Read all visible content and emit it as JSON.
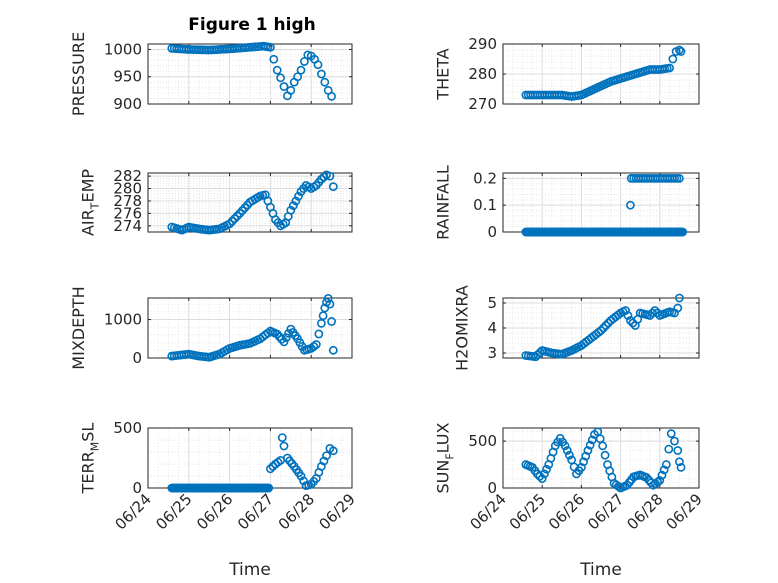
{
  "figure": {
    "title": "Figure 1 high"
  },
  "colors": {
    "marker": "#0072BD",
    "axis": "#262626",
    "grid_major": "#dcdcdc",
    "grid_minor": "#e6e6e6"
  },
  "chart_data": [
    {
      "id": "pressure",
      "type": "scatter",
      "title": "Figure 1 high",
      "xlabel": "",
      "ylabel_parts": [
        "PRESSURE"
      ],
      "xlim": [
        "06/24",
        "06/29"
      ],
      "ylim": [
        900,
        1010
      ],
      "yticks": [
        900,
        950,
        1000
      ],
      "xticks": [
        "06/24",
        "06/25",
        "06/26",
        "06/27",
        "06/28",
        "06/29"
      ],
      "grid": "on-minor",
      "show_xticklabels": false,
      "points": [
        [
          "06/24 14:00",
          1002
        ],
        [
          "06/25 00:00",
          1000
        ],
        [
          "06/25 12:00",
          999
        ],
        [
          "06/26 00:00",
          1001
        ],
        [
          "06/26 12:00",
          1004
        ],
        [
          "06/26 20:00",
          1006
        ],
        [
          "06/27 00:00",
          1004
        ],
        [
          "06/27 02:00",
          982
        ],
        [
          "06/27 04:00",
          962
        ],
        [
          "06/27 06:00",
          948
        ],
        [
          "06/27 08:00",
          932
        ],
        [
          "06/27 10:00",
          915
        ],
        [
          "06/27 12:00",
          925
        ],
        [
          "06/27 14:00",
          940
        ],
        [
          "06/27 16:00",
          950
        ],
        [
          "06/27 18:00",
          962
        ],
        [
          "06/27 20:00",
          978
        ],
        [
          "06/27 22:00",
          990
        ],
        [
          "06/28 00:00",
          988
        ],
        [
          "06/28 02:00",
          982
        ],
        [
          "06/28 04:00",
          972
        ],
        [
          "06/28 06:00",
          955
        ],
        [
          "06/28 08:00",
          940
        ],
        [
          "06/28 10:00",
          925
        ],
        [
          "06/28 12:00",
          914
        ]
      ]
    },
    {
      "id": "theta",
      "type": "scatter",
      "xlabel": "",
      "ylabel_parts": [
        "THETA"
      ],
      "xlim": [
        "06/24",
        "06/29"
      ],
      "ylim": [
        270,
        290
      ],
      "yticks": [
        270,
        280,
        290
      ],
      "xticks": [
        "06/24",
        "06/25",
        "06/26",
        "06/27",
        "06/28",
        "06/29"
      ],
      "grid": "on-minor",
      "show_xticklabels": false,
      "points": [
        [
          "06/24 14:00",
          273
        ],
        [
          "06/25 00:00",
          273
        ],
        [
          "06/25 12:00",
          273
        ],
        [
          "06/25 18:00",
          272.5
        ],
        [
          "06/26 00:00",
          273
        ],
        [
          "06/26 06:00",
          274.5
        ],
        [
          "06/26 12:00",
          276
        ],
        [
          "06/26 18:00",
          277.5
        ],
        [
          "06/27 00:00",
          278.5
        ],
        [
          "06/27 06:00",
          279.5
        ],
        [
          "06/27 12:00",
          280.5
        ],
        [
          "06/27 18:00",
          281.5
        ],
        [
          "06/28 00:00",
          281.5
        ],
        [
          "06/28 06:00",
          282
        ],
        [
          "06/28 08:00",
          285
        ],
        [
          "06/28 10:00",
          287.5
        ],
        [
          "06/28 12:00",
          288
        ],
        [
          "06/28 13:00",
          287.5
        ]
      ]
    },
    {
      "id": "air_temp",
      "type": "scatter",
      "xlabel": "",
      "ylabel_parts": [
        "AIR",
        "T",
        "EMP"
      ],
      "xlim": [
        "06/24",
        "06/29"
      ],
      "ylim": [
        273,
        282.5
      ],
      "yticks": [
        274,
        276,
        278,
        280,
        282
      ],
      "xticks": [
        "06/24",
        "06/25",
        "06/26",
        "06/27",
        "06/28",
        "06/29"
      ],
      "grid": "on-minor",
      "show_xticklabels": false,
      "points": [
        [
          "06/24 14:00",
          273.8
        ],
        [
          "06/24 20:00",
          273.3
        ],
        [
          "06/25 00:00",
          273.8
        ],
        [
          "06/25 06:00",
          273.5
        ],
        [
          "06/25 12:00",
          273.3
        ],
        [
          "06/25 18:00",
          273.5
        ],
        [
          "06/26 00:00",
          274.3
        ],
        [
          "06/26 06:00",
          276
        ],
        [
          "06/26 12:00",
          277.8
        ],
        [
          "06/26 18:00",
          278.8
        ],
        [
          "06/26 21:00",
          279
        ],
        [
          "06/27 00:00",
          277
        ],
        [
          "06/27 03:00",
          275
        ],
        [
          "06/27 06:00",
          274
        ],
        [
          "06/27 09:00",
          274.5
        ],
        [
          "06/27 12:00",
          276.5
        ],
        [
          "06/27 15:00",
          278
        ],
        [
          "06/27 18:00",
          279.5
        ],
        [
          "06/27 21:00",
          280.5
        ],
        [
          "06/28 00:00",
          280
        ],
        [
          "06/28 03:00",
          280.5
        ],
        [
          "06/28 06:00",
          281.5
        ],
        [
          "06/28 09:00",
          282.2
        ],
        [
          "06/28 11:00",
          282
        ],
        [
          "06/28 13:00",
          280.3
        ]
      ]
    },
    {
      "id": "rainfall",
      "type": "scatter",
      "xlabel": "",
      "ylabel_parts": [
        "RAINFALL"
      ],
      "xlim": [
        "06/24",
        "06/29"
      ],
      "ylim": [
        0,
        0.22
      ],
      "yticks": [
        0,
        0.1,
        0.2
      ],
      "xticks": [
        "06/24",
        "06/25",
        "06/26",
        "06/27",
        "06/28",
        "06/29"
      ],
      "grid": "on-minor",
      "show_xticklabels": false,
      "baseline": {
        "from": "06/24 14:00",
        "to": "06/28 14:00",
        "value": 0
      },
      "points": [
        [
          "06/27 06:00",
          0.1
        ],
        [
          "06/27 06:30",
          0.2
        ],
        [
          "06/28 12:00",
          0.2
        ]
      ]
    },
    {
      "id": "mixdepth",
      "type": "scatter",
      "xlabel": "",
      "ylabel_parts": [
        "MIXDEPTH"
      ],
      "xlim": [
        "06/24",
        "06/29"
      ],
      "ylim": [
        0,
        1560
      ],
      "yticks": [
        0,
        1000
      ],
      "xticks": [
        "06/24",
        "06/25",
        "06/26",
        "06/27",
        "06/28",
        "06/29"
      ],
      "grid": "on-minor",
      "show_xticklabels": false,
      "points": [
        [
          "06/24 14:00",
          50
        ],
        [
          "06/25 00:00",
          100
        ],
        [
          "06/25 06:00",
          50
        ],
        [
          "06/25 12:00",
          20
        ],
        [
          "06/25 18:00",
          100
        ],
        [
          "06/26 00:00",
          250
        ],
        [
          "06/26 06:00",
          330
        ],
        [
          "06/26 12:00",
          380
        ],
        [
          "06/26 18:00",
          500
        ],
        [
          "06/27 00:00",
          700
        ],
        [
          "06/27 04:00",
          620
        ],
        [
          "06/27 08:00",
          420
        ],
        [
          "06/27 12:00",
          750
        ],
        [
          "06/27 16:00",
          500
        ],
        [
          "06/27 20:00",
          200
        ],
        [
          "06/28 00:00",
          250
        ],
        [
          "06/28 03:00",
          350
        ],
        [
          "06/28 06:00",
          900
        ],
        [
          "06/28 07:00",
          1100
        ],
        [
          "06/28 08:00",
          1300
        ],
        [
          "06/28 09:00",
          1450
        ],
        [
          "06/28 10:00",
          1550
        ],
        [
          "06/28 11:00",
          1400
        ],
        [
          "06/28 12:00",
          950
        ],
        [
          "06/28 13:00",
          200
        ]
      ]
    },
    {
      "id": "h2omixra",
      "type": "scatter",
      "xlabel": "",
      "ylabel_parts": [
        "H2OMIXRA"
      ],
      "xlim": [
        "06/24",
        "06/29"
      ],
      "ylim": [
        2.8,
        5.2
      ],
      "yticks": [
        3,
        4,
        5
      ],
      "xticks": [
        "06/24",
        "06/25",
        "06/26",
        "06/27",
        "06/28",
        "06/29"
      ],
      "grid": "on-minor",
      "show_xticklabels": false,
      "points": [
        [
          "06/24 14:00",
          2.9
        ],
        [
          "06/24 20:00",
          2.85
        ],
        [
          "06/25 00:00",
          3.1
        ],
        [
          "06/25 06:00",
          3.0
        ],
        [
          "06/25 12:00",
          2.95
        ],
        [
          "06/25 18:00",
          3.1
        ],
        [
          "06/26 00:00",
          3.3
        ],
        [
          "06/26 06:00",
          3.6
        ],
        [
          "06/26 12:00",
          3.9
        ],
        [
          "06/26 18:00",
          4.3
        ],
        [
          "06/27 00:00",
          4.6
        ],
        [
          "06/27 03:00",
          4.7
        ],
        [
          "06/27 06:00",
          4.3
        ],
        [
          "06/27 09:00",
          4.1
        ],
        [
          "06/27 12:00",
          4.6
        ],
        [
          "06/27 18:00",
          4.5
        ],
        [
          "06/27 21:00",
          4.7
        ],
        [
          "06/28 00:00",
          4.5
        ],
        [
          "06/28 06:00",
          4.65
        ],
        [
          "06/28 09:00",
          4.6
        ],
        [
          "06/28 11:00",
          4.8
        ],
        [
          "06/28 12:00",
          5.2
        ]
      ]
    },
    {
      "id": "terr_msl",
      "type": "scatter",
      "xlabel": "Time",
      "ylabel_parts": [
        "TERR",
        "M",
        "SL"
      ],
      "xlim": [
        "06/24",
        "06/29"
      ],
      "ylim": [
        0,
        500
      ],
      "yticks": [
        0,
        500
      ],
      "xticks": [
        "06/24",
        "06/25",
        "06/26",
        "06/27",
        "06/28",
        "06/29"
      ],
      "grid": "on-minor",
      "show_xticklabels": true,
      "baseline": {
        "from": "06/24 14:00",
        "to": "06/26 23:00",
        "value": 0
      },
      "points": [
        [
          "06/27 00:00",
          160
        ],
        [
          "06/27 03:00",
          200
        ],
        [
          "06/27 06:00",
          230
        ],
        [
          "06/27 07:00",
          420
        ],
        [
          "06/27 08:00",
          350
        ],
        [
          "06/27 10:00",
          250
        ],
        [
          "06/27 14:00",
          180
        ],
        [
          "06/27 18:00",
          100
        ],
        [
          "06/27 21:00",
          20
        ],
        [
          "06/28 00:00",
          30
        ],
        [
          "06/28 03:00",
          80
        ],
        [
          "06/28 06:00",
          180
        ],
        [
          "06/28 09:00",
          270
        ],
        [
          "06/28 11:00",
          330
        ],
        [
          "06/28 13:00",
          310
        ]
      ]
    },
    {
      "id": "sun_flux",
      "type": "scatter",
      "xlabel": "Time",
      "ylabel_parts": [
        "SUN",
        "F",
        "LUX"
      ],
      "xlim": [
        "06/24",
        "06/29"
      ],
      "ylim": [
        0,
        640
      ],
      "yticks": [
        0,
        500
      ],
      "xticks": [
        "06/24",
        "06/25",
        "06/26",
        "06/27",
        "06/28",
        "06/29"
      ],
      "grid": "on-minor",
      "show_xticklabels": true,
      "points": [
        [
          "06/24 14:00",
          250
        ],
        [
          "06/24 18:00",
          220
        ],
        [
          "06/24 21:00",
          150
        ],
        [
          "06/25 00:00",
          100
        ],
        [
          "06/25 04:00",
          250
        ],
        [
          "06/25 08:00",
          450
        ],
        [
          "06/25 11:00",
          530
        ],
        [
          "06/25 14:00",
          450
        ],
        [
          "06/25 18:00",
          300
        ],
        [
          "06/25 21:00",
          150
        ],
        [
          "06/26 00:00",
          220
        ],
        [
          "06/26 04:00",
          400
        ],
        [
          "06/26 08:00",
          570
        ],
        [
          "06/26 10:00",
          600
        ],
        [
          "06/26 13:00",
          450
        ],
        [
          "06/26 16:00",
          250
        ],
        [
          "06/26 20:00",
          50
        ],
        [
          "06/27 00:00",
          0
        ],
        [
          "06/27 04:00",
          30
        ],
        [
          "06/27 08:00",
          120
        ],
        [
          "06/27 12:00",
          140
        ],
        [
          "06/27 16:00",
          110
        ],
        [
          "06/27 20:00",
          30
        ],
        [
          "06/28 00:00",
          80
        ],
        [
          "06/28 04:00",
          250
        ],
        [
          "06/28 07:00",
          580
        ],
        [
          "06/28 09:00",
          500
        ],
        [
          "06/28 11:00",
          400
        ],
        [
          "06/28 12:00",
          280
        ],
        [
          "06/28 13:00",
          220
        ]
      ]
    }
  ]
}
